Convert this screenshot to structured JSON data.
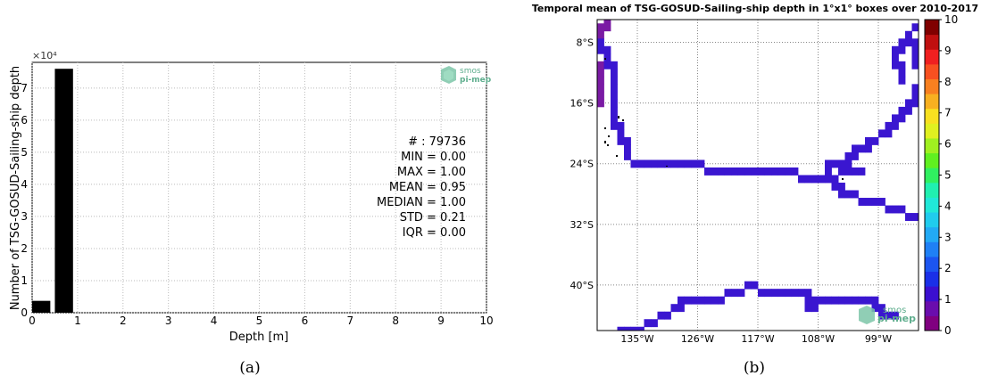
{
  "panel_a": {
    "caption": "(a)",
    "logo_text": [
      "smos",
      "pi-mep"
    ],
    "stats": [
      "# : 79736",
      "MIN = 0.00",
      "MAX =  1.00",
      "MEAN = 0.95",
      "MEDIAN = 1.00",
      "STD = 0.21",
      "IQR = 0.00"
    ]
  },
  "panel_b": {
    "caption": "(b)",
    "logo_text": [
      "smos",
      "pi-mep"
    ],
    "colors": {
      "land": "#ffffff",
      "coastline": "#000000",
      "track_value_1": "#3a16d0",
      "track_value_0": "#7a1aa4"
    }
  },
  "chart_data": [
    {
      "type": "bar",
      "title": "",
      "xlabel": "Depth [m]",
      "ylabel": "Number of TSG-GOSUD-Sailing-ship depth",
      "y_multiplier_label": "×10⁴",
      "xlim": [
        0,
        10
      ],
      "ylim": [
        0,
        78000
      ],
      "xticks": [
        "0",
        "1",
        "2",
        "3",
        "4",
        "5",
        "6",
        "7",
        "8",
        "9",
        "10"
      ],
      "yticks": [
        "0",
        "1",
        "2",
        "3",
        "4",
        "5",
        "6",
        "7"
      ],
      "grid": true,
      "bins": [
        {
          "x0": 0.0,
          "x1": 0.4,
          "value": 3700
        },
        {
          "x0": 0.5,
          "x1": 0.9,
          "value": 76000
        }
      ]
    },
    {
      "type": "heatmap",
      "title": "Temporal mean of TSG-GOSUD-Sailing-ship depth in 1°x1° boxes over 2010-2017",
      "lon_range": [
        -141,
        -93
      ],
      "lat_range": [
        -46,
        -5
      ],
      "xticks": [
        "135°W",
        "126°W",
        "117°W",
        "108°W",
        "99°W"
      ],
      "yticks": [
        "8°S",
        "16°S",
        "24°S",
        "32°S",
        "40°S"
      ],
      "grid": true,
      "colorbar": {
        "range": [
          0,
          10
        ],
        "ticks": [
          "0",
          "1",
          "2",
          "3",
          "4",
          "5",
          "6",
          "7",
          "8",
          "9",
          "10"
        ],
        "colormap": "jet-like",
        "colors": [
          "#800080",
          "#6a0dad",
          "#3b0fd0",
          "#1a2fe8",
          "#1c55f0",
          "#1f80f5",
          "#22aaf5",
          "#20ccee",
          "#20e8d8",
          "#20f0b0",
          "#30f060",
          "#60f020",
          "#a0f020",
          "#e0f020",
          "#f8e020",
          "#f8b020",
          "#f88020",
          "#f85020",
          "#f02020",
          "#c01010",
          "#800000"
        ]
      },
      "tracks": [
        {
          "value": 0,
          "cells": [
            [
              -141,
              -6
            ],
            [
              -140,
              -6
            ],
            [
              -140,
              -5
            ],
            [
              -141,
              -7
            ],
            [
              -141,
              -11
            ],
            [
              -141,
              -12
            ],
            [
              -141,
              -13
            ],
            [
              -141,
              -14
            ],
            [
              -141,
              -15
            ],
            [
              -141,
              -16
            ]
          ]
        },
        {
          "value": 1,
          "cells": [
            [
              -141,
              -8
            ],
            [
              -141,
              -9
            ],
            [
              -140,
              -9
            ],
            [
              -140,
              -10
            ],
            [
              -140,
              -11
            ],
            [
              -139,
              -11
            ],
            [
              -139,
              -12
            ],
            [
              -139,
              -13
            ],
            [
              -139,
              -14
            ],
            [
              -139,
              -15
            ],
            [
              -139,
              -16
            ],
            [
              -139,
              -17
            ],
            [
              -139,
              -18
            ],
            [
              -139,
              -19
            ],
            [
              -138,
              -19
            ],
            [
              -138,
              -20
            ],
            [
              -138,
              -21
            ],
            [
              -137,
              -21
            ],
            [
              -137,
              -22
            ],
            [
              -137,
              -23
            ],
            [
              -136,
              -24
            ],
            [
              -135,
              -24
            ],
            [
              -134,
              -24
            ],
            [
              -133,
              -24
            ],
            [
              -132,
              -24
            ],
            [
              -131,
              -24
            ],
            [
              -130,
              -24
            ],
            [
              -129,
              -24
            ],
            [
              -128,
              -24
            ],
            [
              -127,
              -24
            ],
            [
              -126,
              -24
            ],
            [
              -125,
              -25
            ],
            [
              -124,
              -25
            ],
            [
              -123,
              -25
            ],
            [
              -122,
              -25
            ],
            [
              -121,
              -25
            ],
            [
              -120,
              -25
            ],
            [
              -119,
              -25
            ],
            [
              -118,
              -25
            ],
            [
              -117,
              -25
            ],
            [
              -116,
              -25
            ],
            [
              -115,
              -25
            ],
            [
              -114,
              -25
            ],
            [
              -113,
              -25
            ],
            [
              -112,
              -25
            ],
            [
              -111,
              -26
            ],
            [
              -110,
              -26
            ],
            [
              -109,
              -26
            ],
            [
              -108,
              -26
            ],
            [
              -107,
              -26
            ],
            [
              -106,
              -26
            ],
            [
              -105,
              -25
            ],
            [
              -104,
              -25
            ],
            [
              -103,
              -25
            ],
            [
              -102,
              -25
            ],
            [
              -107,
              -25
            ],
            [
              -107,
              -24
            ],
            [
              -106,
              -24
            ],
            [
              -105,
              -24
            ],
            [
              -104,
              -24
            ],
            [
              -104,
              -23
            ],
            [
              -103,
              -23
            ],
            [
              -103,
              -22
            ],
            [
              -102,
              -22
            ],
            [
              -101,
              -22
            ],
            [
              -101,
              -21
            ],
            [
              -100,
              -21
            ],
            [
              -99,
              -20
            ],
            [
              -98,
              -20
            ],
            [
              -98,
              -19
            ],
            [
              -97,
              -19
            ],
            [
              -97,
              -18
            ],
            [
              -96,
              -18
            ],
            [
              -96,
              -17
            ],
            [
              -95,
              -17
            ],
            [
              -95,
              -16
            ],
            [
              -94,
              -16
            ],
            [
              -94,
              -15
            ],
            [
              -94,
              -14
            ],
            [
              -93,
              -14
            ],
            [
              -93,
              -13
            ],
            [
              -93,
              -12
            ],
            [
              -93,
              -11
            ],
            [
              -94,
              -11
            ],
            [
              -94,
              -10
            ],
            [
              -94,
              -9
            ],
            [
              -94,
              -8
            ],
            [
              -93,
              -7
            ],
            [
              -93,
              -6
            ],
            [
              -94,
              -6
            ],
            [
              -95,
              -7
            ],
            [
              -95,
              -8
            ],
            [
              -96,
              -8
            ],
            [
              -96,
              -9
            ],
            [
              -97,
              -9
            ],
            [
              -97,
              -10
            ],
            [
              -97,
              -11
            ],
            [
              -96,
              -11
            ],
            [
              -96,
              -12
            ],
            [
              -96,
              -13
            ],
            [
              -106,
              -26
            ],
            [
              -106,
              -27
            ],
            [
              -105,
              -27
            ],
            [
              -105,
              -28
            ],
            [
              -104,
              -28
            ],
            [
              -103,
              -28
            ],
            [
              -102,
              -29
            ],
            [
              -101,
              -29
            ],
            [
              -100,
              -29
            ],
            [
              -99,
              -29
            ],
            [
              -98,
              -30
            ],
            [
              -97,
              -30
            ],
            [
              -96,
              -30
            ],
            [
              -95,
              -31
            ],
            [
              -94,
              -31
            ],
            [
              -93,
              -31
            ],
            [
              -138,
              -46
            ],
            [
              -137,
              -46
            ],
            [
              -136,
              -46
            ],
            [
              -135,
              -46
            ],
            [
              -134,
              -45
            ],
            [
              -133,
              -45
            ],
            [
              -132,
              -44
            ],
            [
              -131,
              -44
            ],
            [
              -130,
              -43
            ],
            [
              -129,
              -43
            ],
            [
              -129,
              -42
            ],
            [
              -128,
              -42
            ],
            [
              -127,
              -42
            ],
            [
              -126,
              -42
            ],
            [
              -125,
              -42
            ],
            [
              -124,
              -42
            ],
            [
              -123,
              -42
            ],
            [
              -122,
              -41
            ],
            [
              -121,
              -41
            ],
            [
              -120,
              -41
            ],
            [
              -119,
              -40
            ],
            [
              -118,
              -40
            ],
            [
              -117,
              -41
            ],
            [
              -116,
              -41
            ],
            [
              -115,
              -41
            ],
            [
              -114,
              -41
            ],
            [
              -113,
              -41
            ],
            [
              -112,
              -41
            ],
            [
              -111,
              -41
            ],
            [
              -110,
              -41
            ],
            [
              -110,
              -42
            ],
            [
              -109,
              -42
            ],
            [
              -108,
              -42
            ],
            [
              -107,
              -42
            ],
            [
              -106,
              -42
            ],
            [
              -105,
              -42
            ],
            [
              -104,
              -42
            ],
            [
              -103,
              -42
            ],
            [
              -102,
              -42
            ],
            [
              -101,
              -42
            ],
            [
              -100,
              -42
            ],
            [
              -100,
              -43
            ],
            [
              -99,
              -43
            ],
            [
              -99,
              -44
            ],
            [
              -98,
              -44
            ],
            [
              -110,
              -43
            ],
            [
              -109,
              -43
            ],
            [
              -97,
              -44
            ]
          ]
        }
      ]
    }
  ]
}
